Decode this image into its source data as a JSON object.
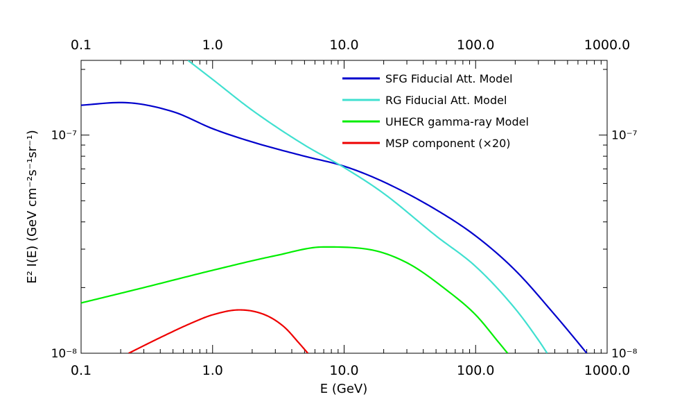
{
  "chart_data": {
    "type": "line",
    "xlabel": "E (GeV)",
    "ylabel": "E² I(E)  (GeV cm⁻²s⁻¹sr⁻¹)",
    "xscale": "log",
    "yscale": "log",
    "xlim": [
      0.1,
      1000
    ],
    "ylim": [
      1e-08,
      2.2e-07
    ],
    "xticks": [
      0.1,
      1,
      10,
      100,
      1000
    ],
    "xtick_labels": [
      "0.1",
      "1.0",
      "10.0",
      "100.0",
      "1000.0"
    ],
    "yticks": [
      1e-08,
      1e-07
    ],
    "ytick_labels": [
      "10⁻⁸",
      "10⁻⁷"
    ],
    "grid": false,
    "frame": "box with mirrored top and right axes",
    "legend_position": "top-right",
    "series": [
      {
        "name": "SFG Fiducial Att. Model",
        "color": "#0000cc",
        "x": [
          0.1,
          0.2,
          0.5,
          1,
          2,
          5,
          10,
          20,
          50,
          100,
          200,
          400,
          600,
          700
        ],
        "y": [
          1.37e-07,
          1.41e-07,
          1.28e-07,
          1.07e-07,
          9.3e-08,
          8e-08,
          7.2e-08,
          6.1e-08,
          4.55e-08,
          3.45e-08,
          2.4e-08,
          1.5e-08,
          1.12e-08,
          1e-08
        ]
      },
      {
        "name": "RG Fiducial Att. Model",
        "color": "#40e0d0",
        "x": [
          0.65,
          1,
          2,
          5,
          10,
          20,
          50,
          100,
          200,
          300,
          350
        ],
        "y": [
          2.2e-07,
          1.8e-07,
          1.3e-07,
          9e-08,
          7.1e-08,
          5.4e-08,
          3.45e-08,
          2.5e-08,
          1.6e-08,
          1.15e-08,
          1e-08
        ]
      },
      {
        "name": "UHECR gamma-ray Model",
        "color": "#00ee00",
        "x": [
          0.1,
          0.3,
          1,
          3,
          7,
          15,
          30,
          60,
          100,
          150,
          175
        ],
        "y": [
          1.7e-08,
          2e-08,
          2.4e-08,
          2.8e-08,
          3.07e-08,
          3e-08,
          2.6e-08,
          1.95e-08,
          1.5e-08,
          1.12e-08,
          1e-08
        ]
      },
      {
        "name": "MSP component (×20)",
        "color": "#ee0000",
        "x": [
          0.23,
          0.4,
          0.7,
          1,
          1.6,
          2.5,
          3.5,
          4.5,
          5.3
        ],
        "y": [
          1e-08,
          1.18e-08,
          1.38e-08,
          1.5e-08,
          1.58e-08,
          1.5e-08,
          1.32e-08,
          1.12e-08,
          1e-08
        ]
      }
    ]
  }
}
